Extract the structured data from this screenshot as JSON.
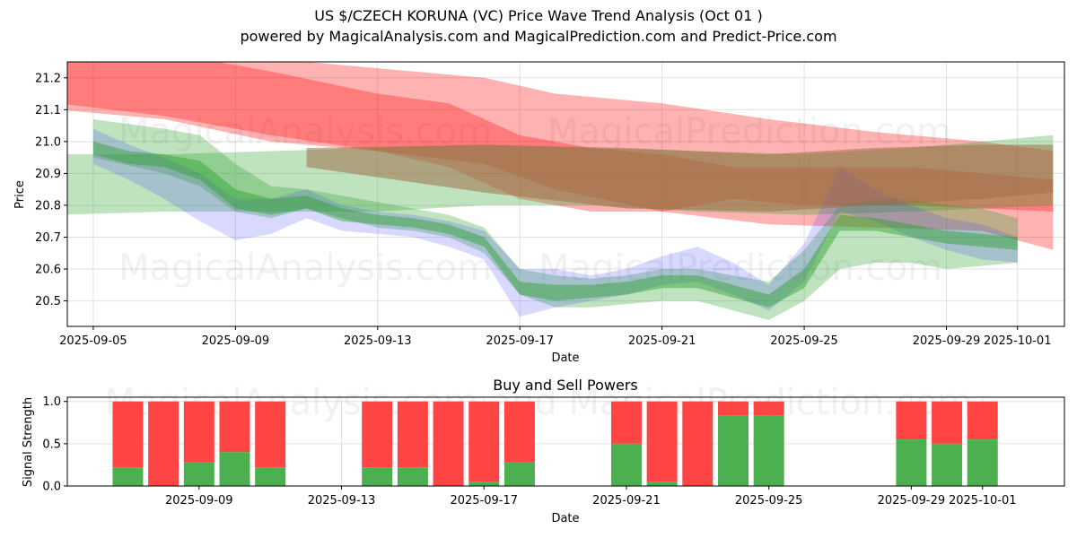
{
  "header": {
    "title": "US $/CZECH KORUNA (VC) Price Wave Trend Analysis (Oct 01 )",
    "subtitle": "powered by MagicalAnalysis.com and MagicalPrediction.com and Predict-Price.com"
  },
  "watermarks": {
    "top_left": "MagicalAnalysis.com",
    "top_right": "MagicalPrediction.com",
    "bottom_left": "MagicalAnalysis.com",
    "bottom_right": "MagicalPrediction.com",
    "lower_chart": "MagicalAnalysis.com and MagicalPrediction.com"
  },
  "colors": {
    "red_band": "#ff0000",
    "green_band": "#2ca02c",
    "blue_band": "#4040ff",
    "brown_overlap": "#a0704a",
    "buy": "#4caf50",
    "sell": "#ff4444",
    "grid": "#e0e0e0"
  },
  "chart_data": [
    {
      "type": "area",
      "title": "",
      "xlabel": "Date",
      "ylabel": "Price",
      "xlim": [
        "2025-09-04",
        "2025-10-02"
      ],
      "ylim": [
        20.42,
        21.25
      ],
      "y_ticks": [
        20.5,
        20.6,
        20.7,
        20.8,
        20.9,
        21.0,
        21.1,
        21.2
      ],
      "x_ticks": [
        "2025-09-05",
        "2025-09-09",
        "2025-09-13",
        "2025-09-17",
        "2025-09-21",
        "2025-09-25",
        "2025-09-29",
        "2025-10-01"
      ],
      "grid": true,
      "series": [
        {
          "name": "red band 1",
          "color": "red",
          "opacity": 0.3,
          "x": [
            "2025-09-04",
            "2025-09-07",
            "2025-09-10",
            "2025-09-13",
            "2025-09-16",
            "2025-09-18",
            "2025-09-21",
            "2025-09-24",
            "2025-09-27",
            "2025-09-30",
            "2025-10-02"
          ],
          "upper": [
            21.28,
            21.28,
            21.26,
            21.23,
            21.2,
            21.15,
            21.12,
            21.07,
            21.03,
            21.0,
            20.97
          ],
          "lower": [
            21.12,
            21.08,
            21.02,
            20.97,
            20.93,
            20.85,
            20.78,
            20.74,
            20.73,
            20.72,
            20.66
          ]
        },
        {
          "name": "red band 2",
          "color": "red",
          "opacity": 0.3,
          "x": [
            "2025-09-04",
            "2025-09-07",
            "2025-09-10",
            "2025-09-13",
            "2025-09-15",
            "2025-09-17",
            "2025-09-19",
            "2025-09-21",
            "2025-09-23",
            "2025-09-25",
            "2025-09-28",
            "2025-10-02"
          ],
          "upper": [
            21.28,
            21.28,
            21.22,
            21.15,
            21.12,
            21.02,
            20.98,
            20.96,
            20.92,
            20.92,
            20.92,
            20.88
          ],
          "lower": [
            21.1,
            21.07,
            21.0,
            20.97,
            20.92,
            20.82,
            20.78,
            20.78,
            20.82,
            20.8,
            20.8,
            20.78
          ]
        },
        {
          "name": "green band wide",
          "color": "green",
          "opacity": 0.3,
          "x": [
            "2025-09-04",
            "2025-09-07",
            "2025-09-10",
            "2025-09-13",
            "2025-09-16",
            "2025-09-19",
            "2025-09-22",
            "2025-09-25",
            "2025-09-28",
            "2025-10-02"
          ],
          "upper": [
            20.96,
            20.96,
            20.97,
            20.98,
            20.99,
            20.98,
            20.97,
            20.96,
            20.98,
            21.02
          ],
          "lower": [
            20.77,
            20.78,
            20.78,
            20.78,
            20.8,
            20.8,
            20.78,
            20.77,
            20.78,
            20.8
          ]
        },
        {
          "name": "green band main",
          "color": "green",
          "opacity": 0.3,
          "x": [
            "2025-09-05",
            "2025-09-07",
            "2025-09-08",
            "2025-09-09",
            "2025-09-10",
            "2025-09-11",
            "2025-09-12",
            "2025-09-13",
            "2025-09-14",
            "2025-09-15",
            "2025-09-16",
            "2025-09-17",
            "2025-09-18",
            "2025-09-19",
            "2025-09-20",
            "2025-09-21",
            "2025-09-22",
            "2025-09-23",
            "2025-09-24",
            "2025-09-25",
            "2025-09-26",
            "2025-09-27",
            "2025-09-28",
            "2025-09-29",
            "2025-09-30",
            "2025-10-01"
          ],
          "upper": [
            21.07,
            21.04,
            21.02,
            20.93,
            20.86,
            20.85,
            20.83,
            20.81,
            20.79,
            20.77,
            20.73,
            20.6,
            20.58,
            20.57,
            20.58,
            20.6,
            20.6,
            20.58,
            20.56,
            20.66,
            20.8,
            20.82,
            20.82,
            20.8,
            20.79,
            20.76
          ],
          "lower": [
            20.95,
            20.9,
            20.86,
            20.78,
            20.76,
            20.79,
            20.76,
            20.73,
            20.72,
            20.7,
            20.65,
            20.52,
            20.48,
            20.48,
            20.49,
            20.5,
            20.5,
            20.47,
            20.44,
            20.5,
            20.6,
            20.62,
            20.62,
            20.6,
            20.61,
            20.62
          ]
        },
        {
          "name": "blue band",
          "color": "blue",
          "opacity": 0.2,
          "x": [
            "2025-09-05",
            "2025-09-06",
            "2025-09-07",
            "2025-09-08",
            "2025-09-09",
            "2025-09-10",
            "2025-09-11",
            "2025-09-12",
            "2025-09-13",
            "2025-09-14",
            "2025-09-15",
            "2025-09-16",
            "2025-09-17",
            "2025-09-18",
            "2025-09-19",
            "2025-09-20",
            "2025-09-21",
            "2025-09-22",
            "2025-09-23",
            "2025-09-24",
            "2025-09-25",
            "2025-09-26",
            "2025-09-27",
            "2025-09-28",
            "2025-09-29",
            "2025-09-30",
            "2025-10-01"
          ],
          "upper": [
            21.04,
            20.99,
            20.95,
            20.9,
            20.82,
            20.82,
            20.85,
            20.8,
            20.78,
            20.77,
            20.75,
            20.72,
            20.6,
            20.6,
            20.58,
            20.6,
            20.64,
            20.67,
            20.62,
            20.55,
            20.68,
            20.92,
            20.85,
            20.8,
            20.76,
            20.74,
            20.7
          ],
          "lower": [
            20.93,
            20.88,
            20.82,
            20.75,
            20.69,
            20.71,
            20.76,
            20.72,
            20.71,
            20.7,
            20.67,
            20.63,
            20.45,
            20.48,
            20.5,
            20.52,
            20.55,
            20.56,
            20.52,
            20.47,
            20.56,
            20.78,
            20.75,
            20.7,
            20.66,
            20.63,
            20.62
          ]
        },
        {
          "name": "green line core",
          "color": "green",
          "opacity": 0.45,
          "x": [
            "2025-09-05",
            "2025-09-06",
            "2025-09-07",
            "2025-09-08",
            "2025-09-09",
            "2025-09-10",
            "2025-09-11",
            "2025-09-12",
            "2025-09-13",
            "2025-09-14",
            "2025-09-15",
            "2025-09-16",
            "2025-09-17",
            "2025-09-18",
            "2025-09-19",
            "2025-09-20",
            "2025-09-21",
            "2025-09-22",
            "2025-09-23",
            "2025-09-24",
            "2025-09-25",
            "2025-09-26",
            "2025-09-27",
            "2025-09-28",
            "2025-09-29",
            "2025-09-30",
            "2025-10-01"
          ],
          "upper": [
            21.0,
            20.97,
            20.96,
            20.94,
            20.85,
            20.82,
            20.83,
            20.79,
            20.77,
            20.76,
            20.74,
            20.7,
            20.56,
            20.55,
            20.55,
            20.56,
            20.58,
            20.58,
            20.55,
            20.52,
            20.6,
            20.77,
            20.76,
            20.74,
            20.72,
            20.71,
            20.7
          ],
          "lower": [
            20.96,
            20.93,
            20.92,
            20.88,
            20.79,
            20.77,
            20.79,
            20.75,
            20.74,
            20.73,
            20.71,
            20.67,
            20.52,
            20.5,
            20.51,
            20.52,
            20.54,
            20.54,
            20.51,
            20.48,
            20.54,
            20.72,
            20.72,
            20.7,
            20.68,
            20.67,
            20.66
          ]
        },
        {
          "name": "forecast upper",
          "color": "brown",
          "opacity": 0.55,
          "x": [
            "2025-09-11",
            "2025-09-16",
            "2025-09-20",
            "2025-09-24",
            "2025-09-27",
            "2025-09-30",
            "2025-10-02"
          ],
          "upper": [
            20.98,
            20.99,
            20.98,
            20.96,
            20.98,
            20.99,
            20.99
          ],
          "lower": [
            20.92,
            20.84,
            20.79,
            20.78,
            20.8,
            20.82,
            20.84
          ]
        }
      ]
    },
    {
      "type": "bar",
      "title": "Buy and Sell Powers",
      "xlabel": "Date",
      "ylabel": "Signal Strength",
      "ylim": [
        0,
        1.05
      ],
      "y_ticks": [
        0.0,
        0.5,
        1.0
      ],
      "x_ticks": [
        "2025-09-09",
        "2025-09-13",
        "2025-09-17",
        "2025-09-21",
        "2025-09-25",
        "2025-09-29",
        "2025-10-01"
      ],
      "xlim": [
        "2025-09-05",
        "2025-10-03"
      ],
      "series": [
        {
          "name": "buy",
          "dates": [
            "2025-09-07",
            "2025-09-08",
            "2025-09-09",
            "2025-09-10",
            "2025-09-11",
            "2025-09-14",
            "2025-09-15",
            "2025-09-16",
            "2025-09-17",
            "2025-09-18",
            "2025-09-21",
            "2025-09-22",
            "2025-09-23",
            "2025-09-24",
            "2025-09-25",
            "2025-09-29",
            "2025-09-30",
            "2025-10-01"
          ],
          "values": [
            0.22,
            0.0,
            0.28,
            0.4,
            0.22,
            0.22,
            0.22,
            0.0,
            0.05,
            0.28,
            0.5,
            0.05,
            0.0,
            0.83,
            0.83,
            0.55,
            0.5,
            0.55
          ]
        },
        {
          "name": "sell",
          "dates": [
            "2025-09-07",
            "2025-09-08",
            "2025-09-09",
            "2025-09-10",
            "2025-09-11",
            "2025-09-14",
            "2025-09-15",
            "2025-09-16",
            "2025-09-17",
            "2025-09-18",
            "2025-09-21",
            "2025-09-22",
            "2025-09-23",
            "2025-09-24",
            "2025-09-25",
            "2025-09-29",
            "2025-09-30",
            "2025-10-01"
          ],
          "values": [
            0.78,
            1.0,
            0.72,
            0.6,
            0.78,
            0.78,
            0.78,
            1.0,
            0.95,
            0.72,
            0.5,
            0.95,
            1.0,
            0.17,
            0.17,
            0.45,
            0.5,
            0.45
          ]
        }
      ]
    }
  ]
}
